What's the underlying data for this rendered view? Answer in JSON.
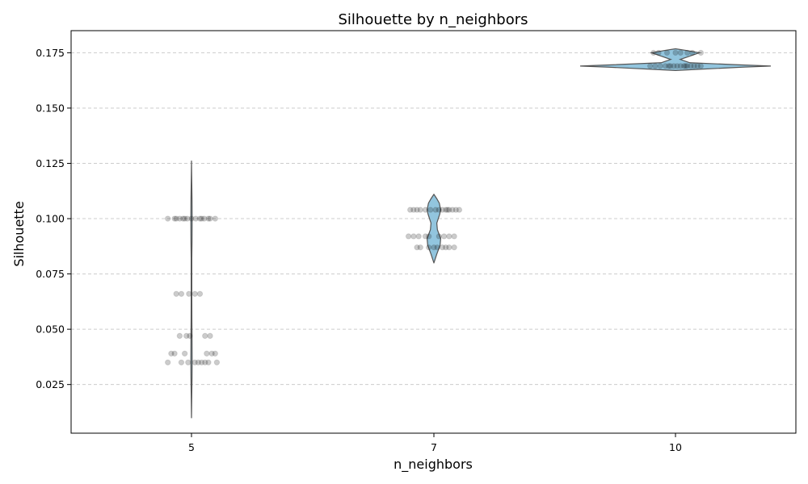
{
  "chart_data": {
    "type": "violin",
    "title": "Silhouette by n_neighbors",
    "xlabel": "n_neighbors",
    "ylabel": "Silhouette",
    "categories": [
      "5",
      "7",
      "10"
    ],
    "ylim": [
      0.003,
      0.185
    ],
    "yticks": [
      0.025,
      0.05,
      0.075,
      0.1,
      0.125,
      0.15,
      0.175
    ],
    "ytick_labels": [
      "0.025",
      "0.050",
      "0.075",
      "0.100",
      "0.125",
      "0.150",
      "0.175"
    ],
    "grid": "y-dashed",
    "colors": {
      "violin_fill": "#92c5de",
      "violin_edge": "#555555",
      "points": "#000000"
    },
    "violins": [
      {
        "category": "5",
        "profile": [
          [
            0.01,
            0.001
          ],
          [
            0.018,
            0.02
          ],
          [
            0.028,
            0.05
          ],
          [
            0.035,
            0.06
          ],
          [
            0.045,
            0.05
          ],
          [
            0.055,
            0.035
          ],
          [
            0.065,
            0.03
          ],
          [
            0.075,
            0.03
          ],
          [
            0.082,
            0.03
          ],
          [
            0.09,
            0.05
          ],
          [
            0.1,
            0.06
          ],
          [
            0.108,
            0.05
          ],
          [
            0.115,
            0.03
          ],
          [
            0.12,
            0.015
          ],
          [
            0.126,
            0.001
          ]
        ]
      },
      {
        "category": "7",
        "profile": [
          [
            0.08,
            0.001
          ],
          [
            0.084,
            0.15
          ],
          [
            0.088,
            0.32
          ],
          [
            0.091,
            0.35
          ],
          [
            0.095,
            0.18
          ],
          [
            0.098,
            0.15
          ],
          [
            0.102,
            0.3
          ],
          [
            0.104,
            0.35
          ],
          [
            0.107,
            0.28
          ],
          [
            0.109,
            0.15
          ],
          [
            0.111,
            0.001
          ]
        ]
      },
      {
        "category": "10",
        "profile": [
          [
            0.167,
            0.001
          ],
          [
            0.1685,
            0.7
          ],
          [
            0.169,
            1.0
          ],
          [
            0.1695,
            0.7
          ],
          [
            0.1705,
            0.15
          ],
          [
            0.172,
            0.05
          ],
          [
            0.1735,
            0.15
          ],
          [
            0.175,
            0.25
          ],
          [
            0.176,
            0.12
          ],
          [
            0.1768,
            0.001
          ]
        ]
      }
    ],
    "points": [
      {
        "category": "5",
        "values": [
          0.1,
          0.1,
          0.1,
          0.1,
          0.1,
          0.1,
          0.1,
          0.1,
          0.1,
          0.1,
          0.1,
          0.1,
          0.1,
          0.1,
          0.1,
          0.066,
          0.066,
          0.066,
          0.066,
          0.066,
          0.047,
          0.047,
          0.047,
          0.047,
          0.047,
          0.039,
          0.039,
          0.039,
          0.039,
          0.039,
          0.039,
          0.035,
          0.035,
          0.035,
          0.035,
          0.035,
          0.035,
          0.035,
          0.035,
          0.035
        ],
        "jitter": [
          -0.28,
          -0.2,
          -0.14,
          -0.1,
          -0.05,
          0.0,
          0.05,
          0.1,
          0.15,
          0.2,
          0.28,
          -0.18,
          -0.08,
          0.12,
          0.22,
          -0.18,
          -0.12,
          -0.03,
          0.04,
          0.1,
          -0.14,
          -0.06,
          -0.02,
          0.16,
          0.22,
          -0.24,
          -0.2,
          -0.08,
          0.18,
          0.24,
          0.28,
          -0.28,
          -0.12,
          -0.04,
          0.04,
          0.08,
          0.12,
          0.16,
          0.2,
          0.3
        ]
      },
      {
        "category": "7",
        "values": [
          0.104,
          0.104,
          0.104,
          0.104,
          0.104,
          0.104,
          0.104,
          0.104,
          0.104,
          0.104,
          0.104,
          0.104,
          0.104,
          0.104,
          0.104,
          0.092,
          0.092,
          0.092,
          0.092,
          0.092,
          0.092,
          0.092,
          0.092,
          0.092,
          0.087,
          0.087,
          0.087,
          0.087,
          0.087,
          0.087,
          0.087,
          0.087,
          0.087
        ],
        "jitter": [
          -0.28,
          -0.24,
          -0.2,
          -0.1,
          -0.04,
          0.02,
          0.06,
          0.1,
          0.14,
          0.18,
          0.22,
          0.26,
          0.3,
          -0.16,
          0.16,
          -0.3,
          -0.24,
          -0.18,
          -0.1,
          -0.06,
          0.06,
          0.12,
          0.18,
          0.24,
          -0.2,
          -0.16,
          -0.06,
          0.0,
          0.04,
          0.1,
          0.14,
          0.18,
          0.24
        ]
      },
      {
        "category": "10",
        "values": [
          0.175,
          0.175,
          0.175,
          0.175,
          0.175,
          0.175,
          0.175,
          0.175,
          0.169,
          0.169,
          0.169,
          0.169,
          0.169,
          0.169,
          0.169,
          0.169,
          0.169,
          0.169,
          0.169,
          0.169,
          0.169,
          0.169,
          0.169,
          0.169
        ],
        "jitter": [
          -0.26,
          -0.2,
          -0.1,
          0.0,
          0.06,
          0.14,
          0.2,
          0.3,
          -0.3,
          -0.24,
          -0.18,
          -0.12,
          -0.06,
          -0.02,
          0.02,
          0.06,
          0.1,
          0.14,
          0.18,
          0.22,
          0.26,
          0.3,
          -0.08,
          0.12
        ]
      }
    ]
  }
}
